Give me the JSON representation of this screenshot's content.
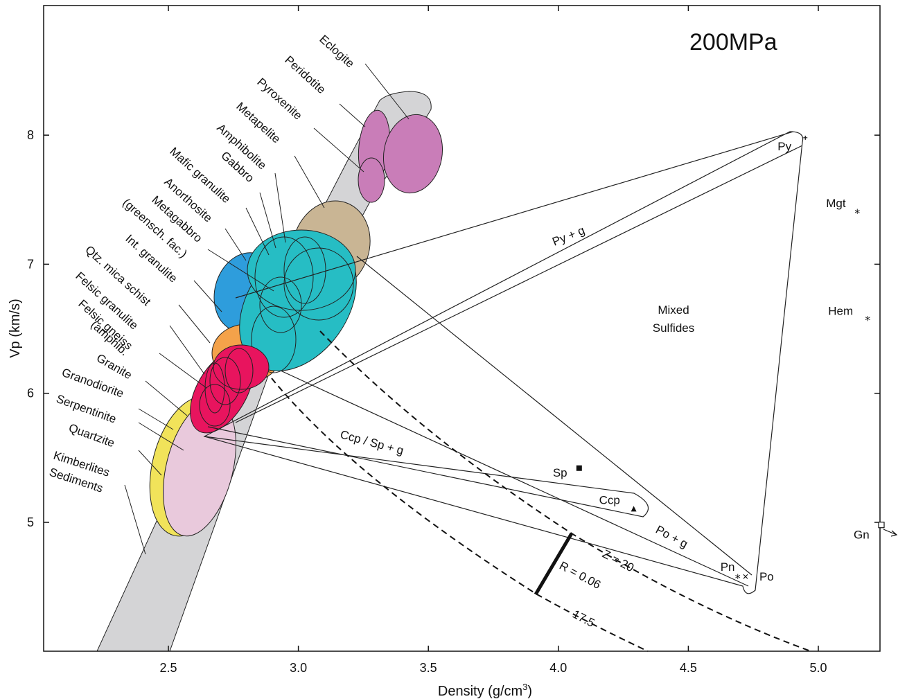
{
  "chart_data": {
    "type": "scatter",
    "title": "200MPa",
    "xlabel": "Density (g/cm",
    "xlabel_sup": "3",
    "xlabel_end": ")",
    "ylabel": "Vp (km/s)",
    "xlim": [
      2.0,
      5.25
    ],
    "ylim": [
      4.0,
      9.0
    ],
    "xticks": [
      2.5,
      3.0,
      3.5,
      4.0,
      4.5,
      5.0
    ],
    "xtick_labels": [
      "2.5",
      "3.0",
      "3.5",
      "4.0",
      "4.5",
      "5.0"
    ],
    "yticks": [
      5,
      6,
      7,
      8
    ],
    "ytick_labels": [
      "5",
      "6",
      "7",
      "8"
    ],
    "colors": {
      "band": "#d4d4d6",
      "eclogite": "#c97db8",
      "metapelite": "#c9b594",
      "mafic": "#26bdc4",
      "anorthosite": "#2e9ddc",
      "intermediate": "#f4a24a",
      "felsic": "#e8145e",
      "quartzite": "#f1e35a",
      "sediments": "#e9c9dc"
    },
    "rock_labels": [
      "Eclogite",
      "Peridotite",
      "Pyroxenite",
      "Metapelite",
      "Amphibolite",
      "Gabbro",
      "Mafic granulite",
      "Anorthosite",
      "Metagabbro",
      "(greensch. fac.)",
      "Int. granulite",
      "Qtz. mica schist",
      "Felsic granulite",
      "Felsic gneiss",
      "(amphib.",
      "Granite",
      "Granodiorite",
      "Serpentinite",
      "Quartzite",
      "Kimberlites",
      "Sediments"
    ],
    "field_labels": {
      "py_g": "Py + g",
      "mixed1": "Mixed",
      "mixed2": "Sulfides",
      "ccp_sp_g": "Ccp / Sp + g",
      "po_g": "Po + g"
    },
    "minerals": [
      {
        "name": "Py",
        "density": 4.95,
        "vp": 7.98,
        "marker": "+"
      },
      {
        "name": "Mgt",
        "density": 5.15,
        "vp": 7.4,
        "marker": "*"
      },
      {
        "name": "Hem",
        "density": 5.19,
        "vp": 6.57,
        "marker": "*"
      },
      {
        "name": "Sp",
        "density": 4.08,
        "vp": 5.42,
        "marker": "square"
      },
      {
        "name": "Ccp",
        "density": 4.29,
        "vp": 5.1,
        "marker": "triangle"
      },
      {
        "name": "Pn",
        "density": 4.69,
        "vp": 4.57,
        "marker": "*"
      },
      {
        "name": "Po",
        "density": 4.72,
        "vp": 4.58,
        "marker": "x"
      },
      {
        "name": "Gn",
        "density": 5.25,
        "vp": 4.98,
        "marker": "open-square"
      }
    ],
    "impedance_contours": [
      {
        "label": "Z = 20",
        "z": 20
      },
      {
        "label": "17.5",
        "z": 17.5
      }
    ],
    "reflection_coefficient": {
      "label": "R = 0.06",
      "value": 0.06
    }
  }
}
